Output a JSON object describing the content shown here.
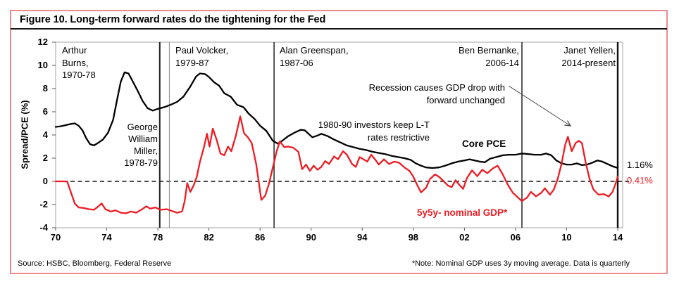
{
  "figure": {
    "title": "Figure 10. Long-term forward rates do the tightening for the Fed",
    "source": "Source: HSBC, Bloomberg, Federal Reserve",
    "note": "*Note: Nominal GDP uses 3y moving average. Data is quarterly"
  },
  "chart_data": {
    "type": "line",
    "title": "Figure 10. Long-term forward rates do the tightening for the Fed",
    "xlabel": "",
    "ylabel": "Spread/PCE (%)",
    "ylim": [
      -4,
      12
    ],
    "xlim": [
      1970,
      2014.4
    ],
    "grid": false,
    "zero_line_dashed": true,
    "y_ticks": [
      12,
      10,
      8,
      6,
      4,
      2,
      0,
      -2,
      -4
    ],
    "x_ticks": [
      {
        "year": 1970,
        "label": "70"
      },
      {
        "year": 1974,
        "label": "74"
      },
      {
        "year": 1978,
        "label": "78"
      },
      {
        "year": 1982,
        "label": "82"
      },
      {
        "year": 1986,
        "label": "86"
      },
      {
        "year": 1990,
        "label": "90"
      },
      {
        "year": 1994,
        "label": "94"
      },
      {
        "year": 1998,
        "label": "98"
      },
      {
        "year": 2002,
        "label": "02"
      },
      {
        "year": 2006,
        "label": "06"
      },
      {
        "year": 2010,
        "label": "10"
      },
      {
        "year": 2014,
        "label": "14"
      }
    ],
    "fed_chair_lines": [
      1978.15,
      1978.9,
      1987.1,
      2006.5,
      2014
    ],
    "annotations": {
      "arthur_burns": "Arthur\nBurns,\n1970-78",
      "george_miller": "George\nWilliam\nMiller,\n1978-79",
      "paul_volcker": "Paul Volcker,\n1979-87",
      "alan_greenspan": "Alan Greenspan,\n1987-06",
      "ben_bernanke": "Ben Bernanke,\n2006-14",
      "janet_yellen": "Janet Yellen,\n2014-present",
      "investors": "1980-90 investors keep L-T\nrates restrictive",
      "recession": "Recession causes GDP drop with\nforward unchanged"
    },
    "series": [
      {
        "name": "Core PCE",
        "color": "#000000",
        "end_label": "1.16%",
        "end_value": 1.16,
        "points": [
          [
            1970,
            4.7
          ],
          [
            1970.4,
            4.75
          ],
          [
            1970.8,
            4.85
          ],
          [
            1971.2,
            4.95
          ],
          [
            1971.5,
            5.0
          ],
          [
            1971.8,
            4.8
          ],
          [
            1972.1,
            4.4
          ],
          [
            1972.4,
            3.7
          ],
          [
            1972.7,
            3.2
          ],
          [
            1973,
            3.1
          ],
          [
            1973.3,
            3.3
          ],
          [
            1973.7,
            3.6
          ],
          [
            1974.1,
            4.2
          ],
          [
            1974.5,
            5.3
          ],
          [
            1974.8,
            7.0
          ],
          [
            1975.1,
            8.6
          ],
          [
            1975.4,
            9.4
          ],
          [
            1975.7,
            9.3
          ],
          [
            1976,
            8.7
          ],
          [
            1976.4,
            7.85
          ],
          [
            1976.8,
            6.95
          ],
          [
            1977.2,
            6.3
          ],
          [
            1977.6,
            6.1
          ],
          [
            1978,
            6.25
          ],
          [
            1978.5,
            6.4
          ],
          [
            1979,
            6.6
          ],
          [
            1979.5,
            6.85
          ],
          [
            1980,
            7.3
          ],
          [
            1980.5,
            8.1
          ],
          [
            1981,
            9.05
          ],
          [
            1981.3,
            9.3
          ],
          [
            1981.7,
            9.25
          ],
          [
            1982,
            9.0
          ],
          [
            1982.4,
            8.55
          ],
          [
            1982.8,
            8.25
          ],
          [
            1983.2,
            7.6
          ],
          [
            1983.7,
            7.3
          ],
          [
            1984.2,
            6.6
          ],
          [
            1984.7,
            6.4
          ],
          [
            1985.1,
            5.85
          ],
          [
            1985.6,
            5.35
          ],
          [
            1986,
            4.8
          ],
          [
            1986.5,
            4.35
          ],
          [
            1987,
            3.5
          ],
          [
            1987.4,
            3.25
          ],
          [
            1987.8,
            3.55
          ],
          [
            1988.2,
            3.9
          ],
          [
            1988.7,
            4.2
          ],
          [
            1989.2,
            4.45
          ],
          [
            1989.5,
            4.4
          ],
          [
            1990.1,
            3.8
          ],
          [
            1990.5,
            3.95
          ],
          [
            1990.8,
            4.1
          ],
          [
            1991.3,
            3.9
          ],
          [
            1991.8,
            3.6
          ],
          [
            1992.3,
            3.35
          ],
          [
            1992.8,
            3.1
          ],
          [
            1993.3,
            2.95
          ],
          [
            1993.8,
            2.8
          ],
          [
            1994.3,
            2.7
          ],
          [
            1994.8,
            2.55
          ],
          [
            1995.3,
            2.45
          ],
          [
            1995.8,
            2.35
          ],
          [
            1996.3,
            2.2
          ],
          [
            1996.8,
            2.1
          ],
          [
            1997.3,
            2.0
          ],
          [
            1997.8,
            1.85
          ],
          [
            1998.2,
            1.55
          ],
          [
            1998.6,
            1.35
          ],
          [
            1999,
            1.2
          ],
          [
            1999.5,
            1.15
          ],
          [
            2000,
            1.2
          ],
          [
            2000.5,
            1.35
          ],
          [
            2001,
            1.55
          ],
          [
            2001.5,
            1.7
          ],
          [
            2002,
            1.8
          ],
          [
            2002.4,
            1.9
          ],
          [
            2002.8,
            1.8
          ],
          [
            2003.2,
            1.7
          ],
          [
            2003.6,
            1.65
          ],
          [
            2004,
            1.95
          ],
          [
            2004.5,
            2.1
          ],
          [
            2005,
            2.25
          ],
          [
            2005.5,
            2.3
          ],
          [
            2006,
            2.3
          ],
          [
            2006.5,
            2.4
          ],
          [
            2007,
            2.35
          ],
          [
            2007.5,
            2.3
          ],
          [
            2008,
            2.3
          ],
          [
            2008.4,
            2.4
          ],
          [
            2008.8,
            2.25
          ],
          [
            2009.2,
            1.8
          ],
          [
            2009.6,
            1.55
          ],
          [
            2010,
            1.45
          ],
          [
            2010.4,
            1.45
          ],
          [
            2010.8,
            1.55
          ],
          [
            2011.2,
            1.4
          ],
          [
            2011.6,
            1.45
          ],
          [
            2012,
            1.6
          ],
          [
            2012.4,
            1.8
          ],
          [
            2012.8,
            1.7
          ],
          [
            2013.2,
            1.5
          ],
          [
            2013.6,
            1.3
          ],
          [
            2014,
            1.16
          ]
        ]
      },
      {
        "name": "5y5y- nominal GDP*",
        "color": "#ed1c24",
        "end_label": "0.41%",
        "end_value": 0.41,
        "points": [
          [
            1970,
            0
          ],
          [
            1970.9,
            0
          ],
          [
            1971.15,
            -0.8
          ],
          [
            1971.5,
            -1.9
          ],
          [
            1971.8,
            -2.25
          ],
          [
            1972.2,
            -2.3
          ],
          [
            1972.6,
            -2.4
          ],
          [
            1973,
            -2.45
          ],
          [
            1973.3,
            -2.2
          ],
          [
            1973.6,
            -1.9
          ],
          [
            1973.9,
            -2.4
          ],
          [
            1974.3,
            -2.6
          ],
          [
            1974.7,
            -2.5
          ],
          [
            1975.1,
            -2.7
          ],
          [
            1975.5,
            -2.75
          ],
          [
            1975.9,
            -2.6
          ],
          [
            1976.3,
            -2.7
          ],
          [
            1976.7,
            -2.45
          ],
          [
            1977.1,
            -2.15
          ],
          [
            1977.4,
            -2.35
          ],
          [
            1977.8,
            -2.25
          ],
          [
            1978.2,
            -2.45
          ],
          [
            1978.7,
            -2.4
          ],
          [
            1979.1,
            -2.55
          ],
          [
            1979.5,
            -2.7
          ],
          [
            1979.9,
            -2.6
          ],
          [
            1980.1,
            -1.7
          ],
          [
            1980.3,
            -0.15
          ],
          [
            1980.55,
            -0.9
          ],
          [
            1980.8,
            -0.35
          ],
          [
            1981.05,
            0.4
          ],
          [
            1981.3,
            1.7
          ],
          [
            1981.6,
            2.9
          ],
          [
            1981.85,
            4.1
          ],
          [
            1982.05,
            3.0
          ],
          [
            1982.3,
            4.55
          ],
          [
            1982.6,
            3.6
          ],
          [
            1982.9,
            2.4
          ],
          [
            1983.2,
            2.25
          ],
          [
            1983.5,
            3.0
          ],
          [
            1983.75,
            2.6
          ],
          [
            1984.1,
            3.9
          ],
          [
            1984.45,
            5.6
          ],
          [
            1984.75,
            4.15
          ],
          [
            1985.05,
            3.8
          ],
          [
            1985.35,
            3.3
          ],
          [
            1985.7,
            1.5
          ],
          [
            1986.1,
            -1.6
          ],
          [
            1986.4,
            -1.25
          ],
          [
            1986.7,
            -0.2
          ],
          [
            1987,
            1.2
          ],
          [
            1987.3,
            2.6
          ],
          [
            1987.55,
            3.45
          ],
          [
            1987.9,
            2.95
          ],
          [
            1988.2,
            3.0
          ],
          [
            1988.6,
            2.9
          ],
          [
            1989,
            2.55
          ],
          [
            1989.3,
            1.05
          ],
          [
            1989.6,
            1.45
          ],
          [
            1989.9,
            0.9
          ],
          [
            1990.2,
            1.35
          ],
          [
            1990.5,
            1.0
          ],
          [
            1990.8,
            1.25
          ],
          [
            1991.1,
            1.75
          ],
          [
            1991.4,
            1.5
          ],
          [
            1991.8,
            2.15
          ],
          [
            1992.1,
            1.9
          ],
          [
            1992.5,
            2.6
          ],
          [
            1992.8,
            2.3
          ],
          [
            1993.2,
            1.5
          ],
          [
            1993.5,
            1.25
          ],
          [
            1993.8,
            2.1
          ],
          [
            1994.1,
            1.9
          ],
          [
            1994.4,
            1.7
          ],
          [
            1994.7,
            2.3
          ],
          [
            1995,
            1.9
          ],
          [
            1995.3,
            1.45
          ],
          [
            1995.7,
            1.9
          ],
          [
            1996.1,
            1.5
          ],
          [
            1996.5,
            1.7
          ],
          [
            1996.9,
            1.6
          ],
          [
            1997.3,
            1.2
          ],
          [
            1997.7,
            0.9
          ],
          [
            1998,
            0.4
          ],
          [
            1998.3,
            -0.3
          ],
          [
            1998.6,
            -0.95
          ],
          [
            1999,
            -0.55
          ],
          [
            1999.3,
            0.2
          ],
          [
            1999.7,
            0.6
          ],
          [
            2000,
            0.4
          ],
          [
            2000.3,
            0.1
          ],
          [
            2000.7,
            -0.35
          ],
          [
            2001,
            -0.5
          ],
          [
            2001.3,
            0.1
          ],
          [
            2001.6,
            -0.3
          ],
          [
            2001.9,
            -0.65
          ],
          [
            2002.2,
            0.3
          ],
          [
            2002.6,
            0.95
          ],
          [
            2003,
            0.45
          ],
          [
            2003.4,
            1.0
          ],
          [
            2003.8,
            0.7
          ],
          [
            2004.2,
            1.1
          ],
          [
            2004.6,
            1.35
          ],
          [
            2005,
            0.6
          ],
          [
            2005.4,
            -0.3
          ],
          [
            2005.8,
            -1.0
          ],
          [
            2006.1,
            -1.3
          ],
          [
            2006.5,
            -1.7
          ],
          [
            2006.9,
            -1.4
          ],
          [
            2007.2,
            -0.9
          ],
          [
            2007.6,
            -1.3
          ],
          [
            2008,
            -1.0
          ],
          [
            2008.3,
            -0.6
          ],
          [
            2008.7,
            -1.15
          ],
          [
            2009,
            -0.7
          ],
          [
            2009.3,
            0.2
          ],
          [
            2009.6,
            1.5
          ],
          [
            2009.9,
            3.2
          ],
          [
            2010.1,
            3.85
          ],
          [
            2010.4,
            2.6
          ],
          [
            2010.7,
            3.3
          ],
          [
            2010.95,
            3.5
          ],
          [
            2011.2,
            3.3
          ],
          [
            2011.5,
            1.6
          ],
          [
            2011.8,
            0.2
          ],
          [
            2012.1,
            -0.7
          ],
          [
            2012.5,
            -1.15
          ],
          [
            2012.9,
            -1.1
          ],
          [
            2013.3,
            -1.3
          ],
          [
            2013.6,
            -0.9
          ],
          [
            2013.8,
            -0.3
          ],
          [
            2014,
            0.41
          ]
        ]
      }
    ]
  }
}
